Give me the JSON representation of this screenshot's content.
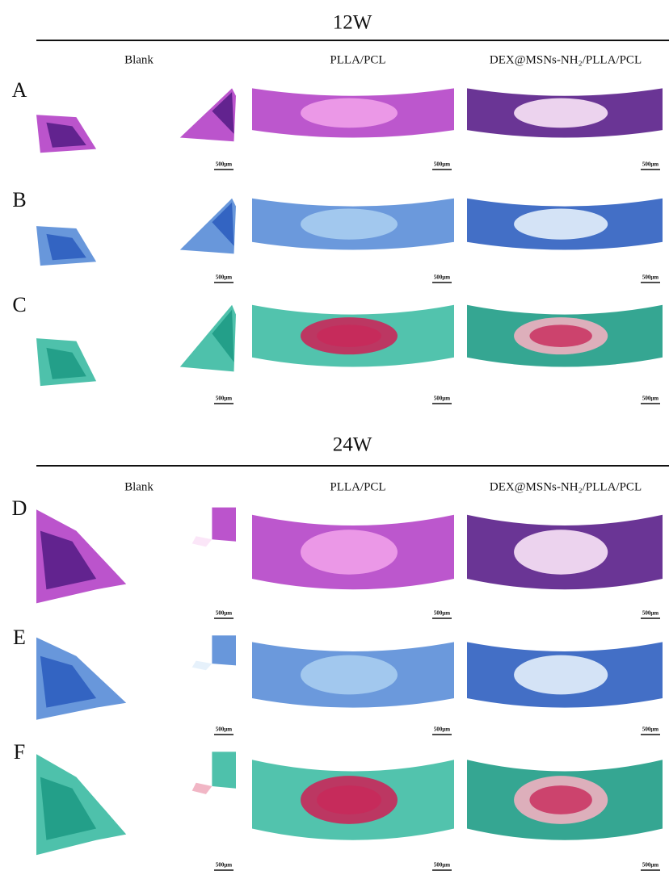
{
  "sections": [
    {
      "title": "12W",
      "columns": [
        "Blank",
        "PLLA/PCL",
        "DEX@MSNs-NH₂/PLLA/PCL"
      ],
      "rows": [
        {
          "label": "A",
          "scale_bars": [
            "500μm",
            "500μm",
            "500μm"
          ]
        },
        {
          "label": "B",
          "scale_bars": [
            "500μm",
            "500μm",
            "500μm"
          ]
        },
        {
          "label": "C",
          "scale_bars": [
            "500μm",
            "500μm",
            "500μm"
          ]
        }
      ]
    },
    {
      "title": "24W",
      "columns": [
        "Blank",
        "PLLA/PCL",
        "DEX@MSNs-NH₂/PLLA/PCL"
      ],
      "rows": [
        {
          "label": "D",
          "scale_bars": [
            "500μm",
            "500μm",
            "500μm"
          ]
        },
        {
          "label": "E",
          "scale_bars": [
            "500μm",
            "500μm",
            "500μm"
          ]
        },
        {
          "label": "F",
          "scale_bars": [
            "500μm",
            "500μm",
            "500μm"
          ]
        }
      ]
    }
  ]
}
